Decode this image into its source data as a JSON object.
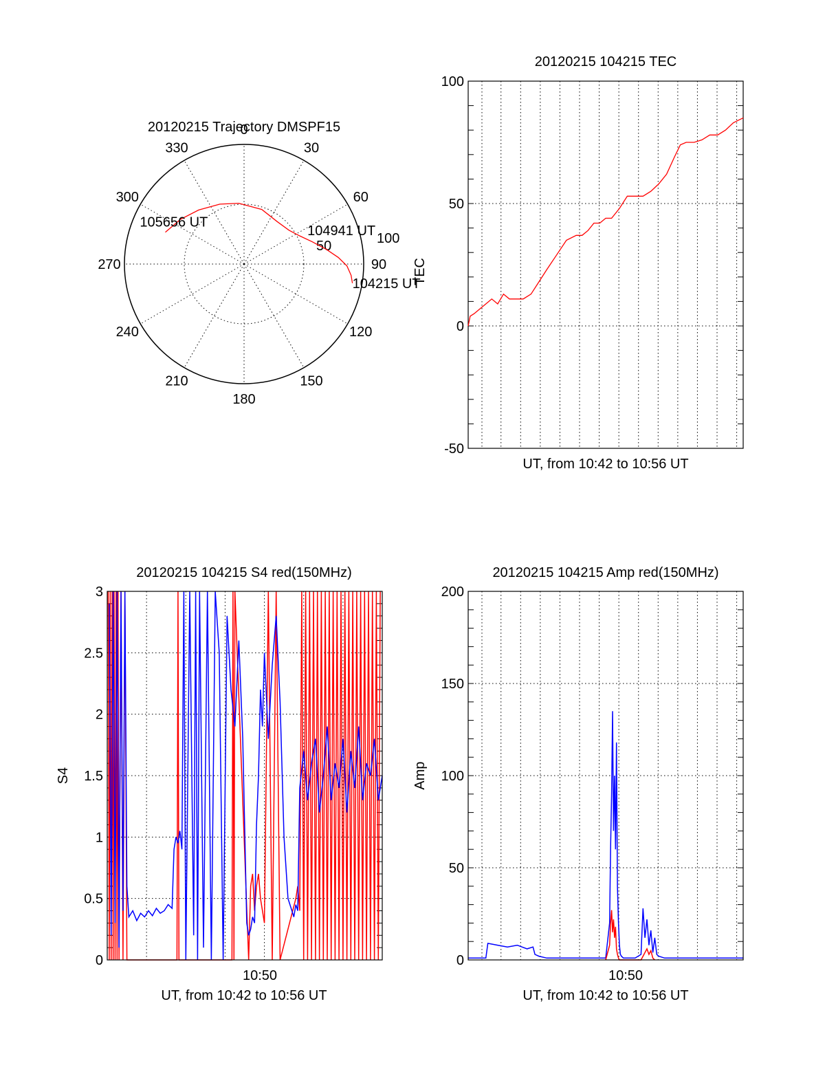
{
  "colors": {
    "red": "#ff0000",
    "blue": "#0000ff",
    "axis": "#000000",
    "background": "#ffffff"
  },
  "chart_data": [
    {
      "type": "polar",
      "title": "20120215 Trajectory DMSPF15",
      "angle_labels": [
        "0",
        "30",
        "60",
        "90",
        "120",
        "150",
        "180",
        "210",
        "240",
        "270",
        "300",
        "330"
      ],
      "radial_labels": [
        "50",
        "100"
      ],
      "series": [
        {
          "color": "#ff0000",
          "azimuth": [
            292,
            305,
            320,
            338,
            355,
            18,
            38,
            53,
            63,
            72,
            80,
            86,
            91,
            96,
            100
          ],
          "radius": [
            71,
            65,
            59,
            54,
            51,
            48,
            45,
            47,
            52,
            60,
            70,
            79,
            86,
            90,
            92
          ]
        }
      ],
      "annotations": [
        {
          "text": "105656 UT",
          "azimuth": 292,
          "radius": 94
        },
        {
          "text": "104941 UT",
          "azimuth": 62,
          "radius": 60
        },
        {
          "text": "104215 UT",
          "azimuth": 100,
          "radius": 92
        }
      ],
      "grid": true
    },
    {
      "type": "line",
      "title": "20120215 104215 TEC",
      "xlabel": "UT, from 10:42 to 10:56 UT",
      "ylabel": "TEC",
      "xlim": [
        0,
        14
      ],
      "ylim": [
        -50,
        100
      ],
      "yticks": [
        "100",
        "50",
        "0",
        "-50"
      ],
      "grid": true,
      "series": [
        {
          "color": "#ff0000",
          "x": [
            0,
            0.1,
            0.3,
            0.6,
            0.9,
            1.2,
            1.5,
            1.8,
            2.1,
            2.4,
            2.8,
            3.2,
            3.6,
            4.0,
            4.5,
            5.0,
            5.5,
            5.8,
            6.1,
            6.4,
            6.7,
            7.0,
            7.3,
            7.7,
            8.1,
            8.5,
            8.9,
            9.3,
            9.7,
            10.1,
            10.5,
            10.8,
            11.1,
            11.5,
            11.9,
            12.3,
            12.7,
            13.1,
            13.5,
            14.0
          ],
          "y": [
            0,
            4,
            5,
            7,
            9,
            11,
            9,
            13,
            11,
            11,
            11,
            13,
            18,
            23,
            29,
            35,
            37,
            37,
            39,
            42,
            42,
            44,
            44,
            48,
            53,
            53,
            53,
            55,
            58,
            62,
            69,
            74,
            75,
            75,
            76,
            78,
            78,
            80,
            83,
            85
          ]
        }
      ]
    },
    {
      "type": "line",
      "title": "20120215 104215 S4 red(150MHz)",
      "xlabel": "UT, from 10:42 to 10:56 UT",
      "ylabel": "S4",
      "xlim": [
        0,
        14
      ],
      "ylim": [
        0,
        3
      ],
      "xticks": [
        "10:50"
      ],
      "yticks": [
        "3",
        "2.5",
        "2",
        "1.5",
        "1",
        "0.5",
        "0"
      ],
      "grid": true,
      "series": [
        {
          "color": "#ff0000",
          "x": [
            0.05,
            0.1,
            0.15,
            0.2,
            0.25,
            0.3,
            0.35,
            0.4,
            0.45,
            0.5,
            0.55,
            0.6,
            0.7,
            0.8,
            0.9,
            1.0,
            3.55,
            3.6,
            3.65,
            6.35,
            6.4,
            6.45,
            6.5,
            7.2,
            7.3,
            7.4,
            7.5,
            7.6,
            7.7,
            7.8,
            8.0,
            8.2,
            8.4,
            8.6,
            8.8,
            9.6,
            9.7,
            9.8,
            9.9,
            10.0,
            10.1,
            10.2,
            10.3,
            10.4,
            10.5,
            10.6,
            10.7,
            10.8,
            10.9,
            11.0,
            11.1,
            11.2,
            11.3,
            11.4,
            11.5,
            11.6,
            11.7,
            11.8,
            11.9,
            12.0,
            12.1,
            12.2,
            12.3,
            12.4,
            12.5,
            12.6,
            12.7,
            12.8,
            12.9,
            13.0,
            13.1,
            13.2,
            13.3,
            13.4,
            13.5,
            13.6,
            13.7,
            13.8,
            13.9
          ],
          "y": [
            3,
            0,
            3,
            0,
            3,
            0,
            3,
            0,
            3,
            0,
            3,
            0,
            3,
            0,
            3,
            0,
            0,
            3,
            0,
            0,
            3,
            0,
            3,
            0,
            0.6,
            0.7,
            0.4,
            0.6,
            0.7,
            0.5,
            0.3,
            3,
            0,
            3,
            0,
            0.5,
            0.6,
            0.4,
            3,
            0,
            3,
            0,
            3,
            0,
            3,
            0,
            3,
            0,
            3,
            0,
            3,
            0,
            3,
            0,
            3,
            0,
            3,
            0,
            3,
            0,
            3,
            0,
            3,
            0,
            3,
            0,
            3,
            0,
            3,
            0,
            3,
            0,
            3,
            0,
            3,
            0,
            3,
            0,
            3
          ]
        },
        {
          "color": "#0000ff",
          "x": [
            0.1,
            0.2,
            0.3,
            0.4,
            0.5,
            0.6,
            0.7,
            0.8,
            0.9,
            1.0,
            1.1,
            1.3,
            1.5,
            1.7,
            1.9,
            2.1,
            2.3,
            2.5,
            2.7,
            2.9,
            3.1,
            3.3,
            3.4,
            3.5,
            3.6,
            3.7,
            3.8,
            3.9,
            4.0,
            4.2,
            4.4,
            4.5,
            4.6,
            4.7,
            4.9,
            5.1,
            5.3,
            5.5,
            5.7,
            5.9,
            6.1,
            6.3,
            6.5,
            6.7,
            6.9,
            7.1,
            7.2,
            7.3,
            7.4,
            7.5,
            7.6,
            7.7,
            7.8,
            7.9,
            8.0,
            8.2,
            8.4,
            8.6,
            8.8,
            9.0,
            9.2,
            9.4,
            9.5,
            9.6,
            9.7,
            9.8,
            10.0,
            10.2,
            10.4,
            10.6,
            10.8,
            11.0,
            11.2,
            11.4,
            11.6,
            11.8,
            12.0,
            12.2,
            12.4,
            12.6,
            12.8,
            13.0,
            13.2,
            13.4,
            13.6,
            13.8,
            14.0
          ],
          "y": [
            2.9,
            0.2,
            3,
            0.3,
            3,
            0.1,
            3,
            0.4,
            3,
            0.6,
            0.35,
            0.4,
            0.32,
            0.38,
            0.35,
            0.4,
            0.36,
            0.42,
            0.38,
            0.4,
            0.45,
            0.42,
            0.9,
            1.0,
            0.95,
            1.05,
            0.9,
            3,
            0,
            3,
            0.2,
            3,
            0,
            3,
            0.1,
            3,
            0,
            3,
            2.5,
            0,
            2.8,
            2.2,
            1.9,
            2.6,
            1.8,
            0.3,
            0.2,
            0.25,
            0.35,
            0.3,
            1.1,
            1.5,
            2.2,
            1.9,
            2.5,
            1.8,
            2.4,
            2.8,
            2.1,
            1.0,
            0.5,
            0.4,
            0.35,
            0.45,
            0.4,
            1.4,
            1.7,
            1.3,
            1.6,
            1.8,
            1.2,
            1.5,
            1.9,
            1.3,
            1.6,
            1.4,
            1.8,
            1.2,
            1.7,
            1.4,
            1.9,
            1.3,
            1.6,
            1.5,
            1.8,
            1.3,
            1.5
          ]
        }
      ]
    },
    {
      "type": "line",
      "title": "20120215 104215 Amp red(150MHz)",
      "xlabel": "UT, from 10:42 to 10:56 UT",
      "ylabel": "Amp",
      "xlim": [
        0,
        14
      ],
      "ylim": [
        0,
        200
      ],
      "xticks": [
        "10:50"
      ],
      "yticks": [
        "200",
        "150",
        "100",
        "50",
        "0"
      ],
      "grid": true,
      "series": [
        {
          "color": "#0000ff",
          "x": [
            0,
            0.5,
            0.9,
            1.0,
            1.5,
            2.0,
            2.5,
            3.0,
            3.3,
            3.4,
            3.6,
            4.0,
            5.0,
            6.0,
            7.0,
            7.2,
            7.25,
            7.3,
            7.35,
            7.4,
            7.45,
            7.5,
            7.55,
            7.6,
            7.65,
            7.7,
            7.75,
            7.8,
            7.9,
            8.0,
            8.5,
            8.8,
            8.9,
            9.0,
            9.1,
            9.2,
            9.3,
            9.4,
            9.5,
            9.6,
            9.7,
            10.0,
            11.0,
            12.0,
            13.0,
            14.0
          ],
          "y": [
            1,
            1,
            1,
            9,
            8,
            7,
            8,
            6,
            7,
            3,
            2,
            1,
            1,
            1,
            1,
            20,
            60,
            90,
            135,
            70,
            100,
            60,
            118,
            40,
            20,
            8,
            3,
            2,
            1,
            1,
            1,
            3,
            28,
            12,
            22,
            8,
            16,
            4,
            12,
            3,
            2,
            1,
            1,
            1,
            1,
            1
          ]
        },
        {
          "color": "#ff0000",
          "x": [
            7.0,
            7.2,
            7.25,
            7.3,
            7.35,
            7.4,
            7.45,
            7.5,
            7.55,
            7.6,
            7.65,
            7.7,
            7.8,
            8.8,
            8.9,
            9.0,
            9.1,
            9.2,
            9.3,
            9.4,
            9.5
          ],
          "y": [
            0,
            8,
            20,
            27,
            15,
            22,
            12,
            18,
            6,
            3,
            1,
            0,
            0,
            0,
            2,
            4,
            6,
            3,
            5,
            1,
            0
          ]
        }
      ]
    }
  ]
}
